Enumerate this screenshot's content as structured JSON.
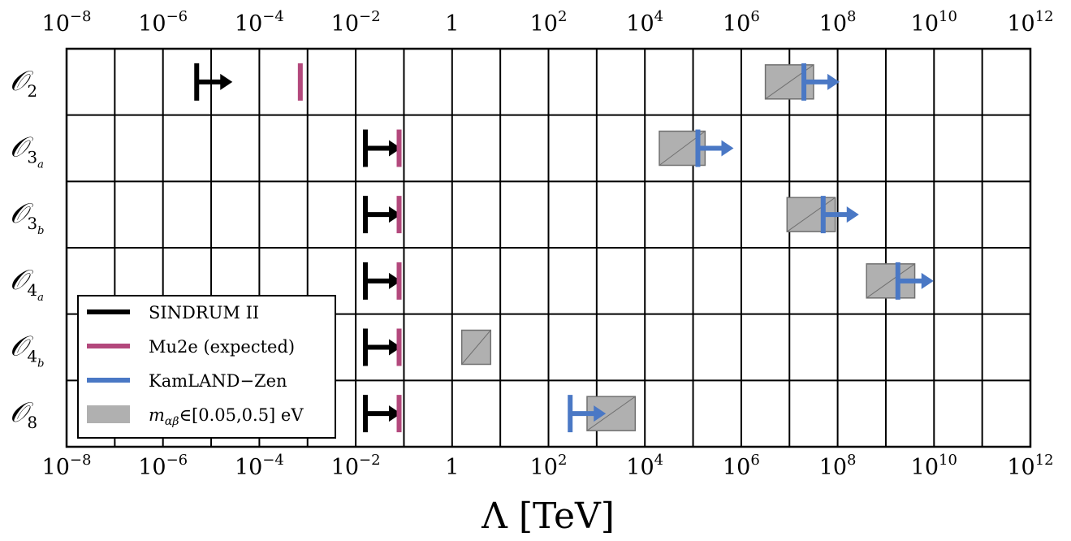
{
  "chart_data": {
    "type": "interval",
    "xlabel": "Λ [TeV]",
    "xscale": "log",
    "xlim_log10": [
      -8,
      12
    ],
    "x_ticks": [
      {
        "base": "10",
        "exp": "−8"
      },
      {
        "base": "10",
        "exp": "−6"
      },
      {
        "base": "10",
        "exp": "−4"
      },
      {
        "base": "10",
        "exp": "−2"
      },
      {
        "base": "1",
        "exp": ""
      },
      {
        "base": "10",
        "exp": "2"
      },
      {
        "base": "10",
        "exp": "4"
      },
      {
        "base": "10",
        "exp": "6"
      },
      {
        "base": "10",
        "exp": "8"
      },
      {
        "base": "10",
        "exp": "10"
      },
      {
        "base": "10",
        "exp": "12"
      }
    ],
    "grid": true,
    "operators": [
      {
        "label": "𝒪",
        "sub": "2",
        "subsub": "",
        "sindrum_log10": -5.3,
        "mu2e_log10": -3.15,
        "kamland_log10": 7.3,
        "band_log10": [
          6.5,
          7.5
        ]
      },
      {
        "label": "𝒪",
        "sub": "3",
        "subsub": "a",
        "sindrum_log10": -1.8,
        "mu2e_log10": -1.1,
        "kamland_log10": 5.1,
        "band_log10": [
          4.3,
          5.25
        ]
      },
      {
        "label": "𝒪",
        "sub": "3",
        "subsub": "b",
        "sindrum_log10": -1.8,
        "mu2e_log10": -1.1,
        "kamland_log10": 7.7,
        "band_log10": [
          6.95,
          7.95
        ]
      },
      {
        "label": "𝒪",
        "sub": "4",
        "subsub": "a",
        "sindrum_log10": -1.8,
        "mu2e_log10": -1.1,
        "kamland_log10": 9.25,
        "band_log10": [
          8.6,
          9.6
        ]
      },
      {
        "label": "𝒪",
        "sub": "4",
        "subsub": "b",
        "sindrum_log10": -1.8,
        "mu2e_log10": -1.1,
        "kamland_log10": null,
        "band_log10": [
          0.2,
          0.8
        ]
      },
      {
        "label": "𝒪",
        "sub": "8",
        "subsub": "",
        "sindrum_log10": -1.8,
        "mu2e_log10": -1.1,
        "kamland_log10": 2.45,
        "band_log10": [
          2.8,
          3.8
        ]
      }
    ],
    "legend": {
      "placement": "lower-left",
      "items": [
        {
          "label": "SINDRUM II",
          "color": "#000000",
          "style": "line"
        },
        {
          "label": "Mu2e (expected)",
          "color": "#b3487c",
          "style": "line"
        },
        {
          "label": "KamLAND−Zen",
          "color": "#4a78c5",
          "style": "line"
        },
        {
          "label": "m",
          "sub": "αβ",
          "label_rest": "∈[0.05,0.5] eV",
          "color": "#b0b0b0",
          "style": "patch"
        }
      ]
    },
    "colors": {
      "sindrum": "#000000",
      "mu2e": "#b3487c",
      "kamland": "#4a78c5",
      "band_fill": "#b0b0b0",
      "band_edge": "#707070"
    }
  }
}
